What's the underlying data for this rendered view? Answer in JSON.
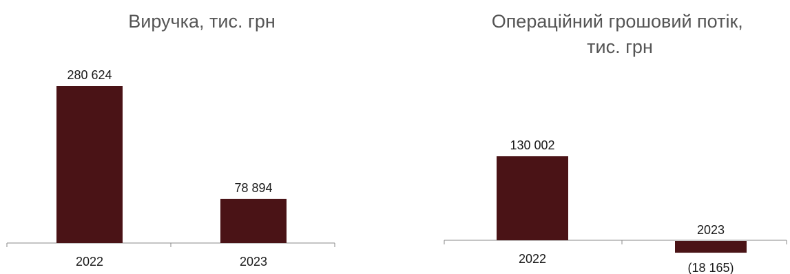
{
  "chart_data": [
    {
      "type": "bar",
      "title": "Виручка, тис. грн",
      "categories": [
        "2022",
        "2023"
      ],
      "values": [
        280624,
        78894
      ],
      "value_labels": [
        "280 624",
        "78 894"
      ],
      "color": "#4a1316"
    },
    {
      "type": "bar",
      "title_lines": [
        "Операційний грошовий потік,",
        "тис. грн"
      ],
      "categories": [
        "2022",
        "2023"
      ],
      "values": [
        130002,
        -18165
      ],
      "value_labels": [
        "130 002",
        "(18 165)"
      ],
      "color": "#4a1316"
    }
  ]
}
